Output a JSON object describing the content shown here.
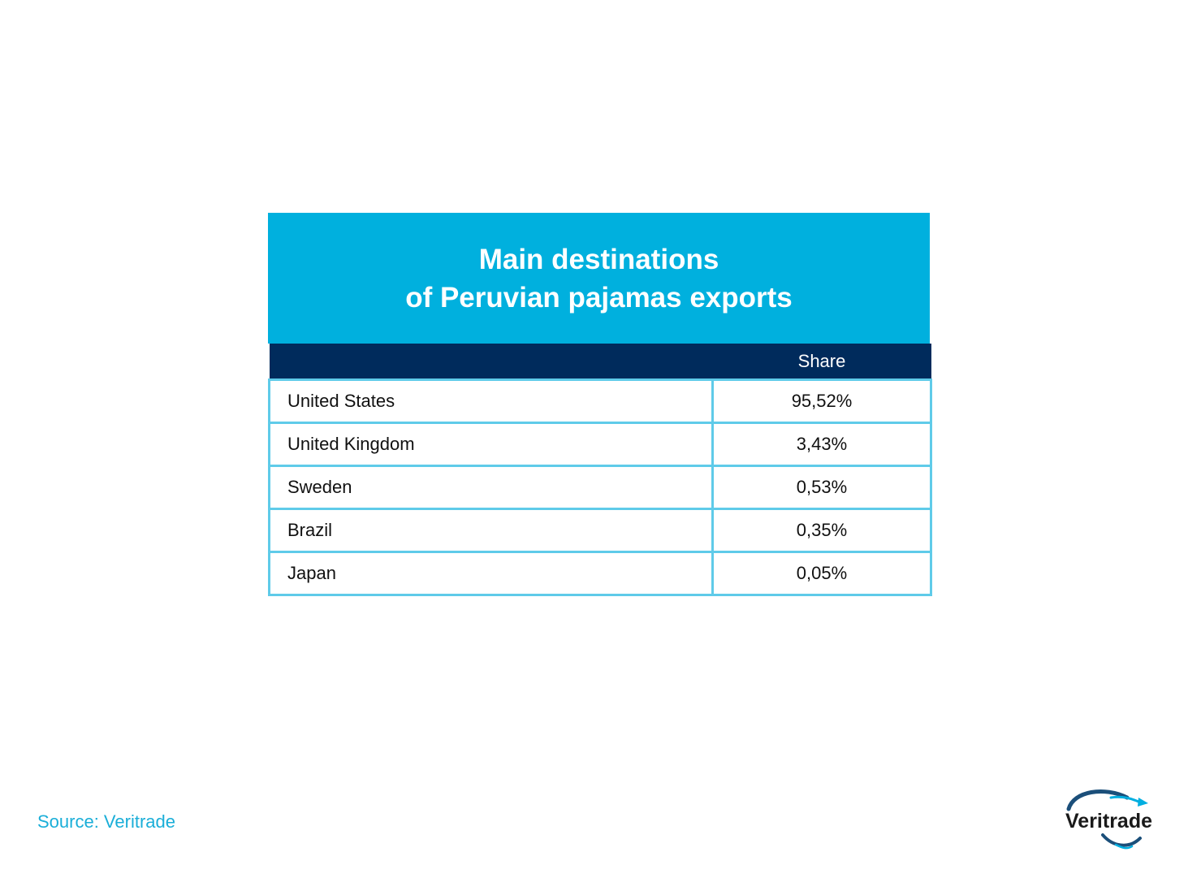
{
  "table": {
    "title_line1": "Main destinations",
    "title_line2": "of Peruvian pajamas exports",
    "header": {
      "name": "",
      "share": "Share"
    },
    "rows": [
      {
        "country": "United States",
        "share": "95,52%"
      },
      {
        "country": "United Kingdom",
        "share": "3,43%"
      },
      {
        "country": "Sweden",
        "share": "0,53%"
      },
      {
        "country": "Brazil",
        "share": "0,35%"
      },
      {
        "country": "Japan",
        "share": "0,05%"
      }
    ]
  },
  "chart_data": {
    "type": "table",
    "title": "Main destinations of Peruvian pajamas exports",
    "columns": [
      "",
      "Share"
    ],
    "rows": [
      [
        "United States",
        "95,52%"
      ],
      [
        "United Kingdom",
        "3,43%"
      ],
      [
        "Sweden",
        "0,53%"
      ],
      [
        "Brazil",
        "0,35%"
      ],
      [
        "Japan",
        "0,05%"
      ]
    ]
  },
  "footer": {
    "source": "Source: Veritrade",
    "logo_text": "Veritrade"
  },
  "colors": {
    "title_bg": "#00b0de",
    "header_bg": "#002b5c",
    "grid": "#5fcbe9",
    "source_text": "#1aaed8"
  },
  "icons": {
    "logo": "veritrade-logo-icon"
  }
}
